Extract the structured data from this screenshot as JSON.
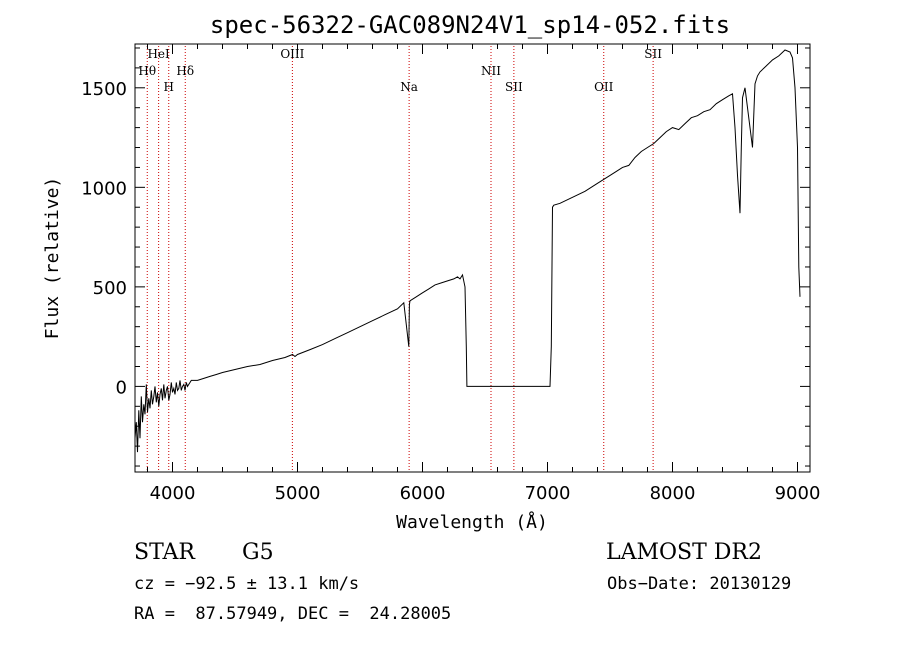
{
  "chart_data": {
    "type": "line",
    "title": "spec-56322-GAC089N24V1_sp14-052.fits",
    "xlabel": "Wavelength (Å)",
    "ylabel": "Flux (relative)",
    "xlim": [
      3700,
      9100
    ],
    "ylim": [
      -430,
      1720
    ],
    "x_ticks": [
      4000,
      5000,
      6000,
      7000,
      8000,
      9000
    ],
    "x_tick_labels": [
      "4000",
      "5000",
      "6000",
      "7000",
      "8000",
      "9000"
    ],
    "y_ticks": [
      0,
      500,
      1000,
      1500
    ],
    "y_tick_labels": [
      "0",
      "500",
      "1000",
      "1500"
    ],
    "grid": false,
    "series": [
      {
        "x": [
          3700,
          3710,
          3720,
          3730,
          3740,
          3750,
          3760,
          3770,
          3780,
          3790,
          3800,
          3810,
          3820,
          3830,
          3840,
          3850,
          3860,
          3870,
          3880,
          3890,
          3900,
          3910,
          3920,
          3930,
          3940,
          3950,
          3960,
          3970,
          3980,
          3990,
          4000,
          4010,
          4020,
          4030,
          4040,
          4050,
          4060,
          4070,
          4080,
          4090,
          4100,
          4110,
          4120,
          4130,
          4150,
          4200,
          4250,
          4300,
          4350,
          4400,
          4500,
          4600,
          4700,
          4800,
          4900,
          4960,
          4980,
          5000,
          5100,
          5200,
          5300,
          5400,
          5500,
          5600,
          5700,
          5800,
          5850,
          5890,
          5895,
          5900,
          5950,
          6000,
          6050,
          6100,
          6150,
          6200,
          6250,
          6280,
          6300,
          6320,
          6340,
          6350,
          6355,
          6360,
          6500,
          6700,
          6900,
          7020,
          7030,
          7040,
          7050,
          7100,
          7200,
          7300,
          7400,
          7500,
          7550,
          7600,
          7650,
          7700,
          7750,
          7800,
          7850,
          7900,
          7950,
          8000,
          8050,
          8100,
          8150,
          8200,
          8250,
          8300,
          8350,
          8400,
          8450,
          8480,
          8500,
          8520,
          8540,
          8550,
          8560,
          8580,
          8600,
          8640,
          8660,
          8680,
          8700,
          8750,
          8800,
          8850,
          8900,
          8940,
          8960,
          8980,
          9000,
          9010,
          9020
        ],
        "y": [
          -260,
          -180,
          -330,
          -120,
          -260,
          -50,
          -180,
          -90,
          -140,
          10,
          -130,
          -60,
          -110,
          -20,
          -90,
          -50,
          0,
          -80,
          -30,
          -100,
          -40,
          -10,
          -70,
          10,
          -60,
          -20,
          0,
          -70,
          -40,
          20,
          -30,
          -10,
          -40,
          20,
          -20,
          -10,
          30,
          -20,
          0,
          10,
          -20,
          20,
          0,
          10,
          30,
          30,
          40,
          50,
          60,
          70,
          85,
          100,
          110,
          130,
          145,
          160,
          150,
          160,
          185,
          210,
          240,
          270,
          300,
          330,
          360,
          390,
          420,
          200,
          410,
          430,
          450,
          470,
          490,
          510,
          520,
          530,
          540,
          550,
          540,
          560,
          500,
          200,
          0,
          0,
          0,
          0,
          0,
          0,
          200,
          900,
          910,
          920,
          950,
          980,
          1020,
          1060,
          1080,
          1100,
          1110,
          1150,
          1180,
          1200,
          1220,
          1250,
          1280,
          1300,
          1290,
          1320,
          1350,
          1360,
          1380,
          1390,
          1420,
          1440,
          1460,
          1470,
          1300,
          1060,
          870,
          1200,
          1450,
          1500,
          1400,
          1200,
          1520,
          1560,
          1580,
          1610,
          1640,
          1660,
          1690,
          1680,
          1650,
          1500,
          1200,
          600,
          450
        ]
      }
    ],
    "lines": [
      {
        "label": "Hθ",
        "x": 3798
      },
      {
        "label": "HeI",
        "x": 3889
      },
      {
        "label": "H",
        "x": 3970
      },
      {
        "label": "Hδ",
        "x": 4102
      },
      {
        "label": "OIII",
        "x": 4959
      },
      {
        "label": "Na",
        "x": 5893
      },
      {
        "label": "NII",
        "x": 6548
      },
      {
        "label": "SII",
        "x": 6731
      },
      {
        "label": "OII",
        "x": 7450
      },
      {
        "label": "SII",
        "x": 7845
      }
    ],
    "colors": {
      "spectrum": "#000000",
      "lines": "#cc0000",
      "axes": "#000000"
    }
  },
  "info": {
    "class": "STAR",
    "subclass": "G5",
    "survey": "LAMOST DR2",
    "cz": "cz = −92.5 ± 13.1 km/s",
    "obs_date": "Obs−Date: 20130129",
    "coords": "RA =  87.57949, DEC =  24.28005"
  }
}
